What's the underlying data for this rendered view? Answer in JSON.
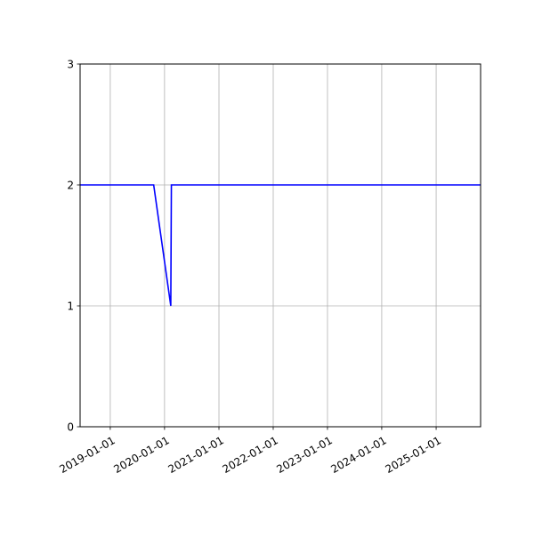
{
  "chart_data": {
    "type": "line",
    "title": "",
    "xlabel": "",
    "ylabel": "",
    "x_axis_type": "date",
    "xlim": [
      "2018-06-12",
      "2025-10-27"
    ],
    "ylim": [
      0,
      3
    ],
    "grid": true,
    "x_ticks": [
      "2019-01-01",
      "2020-01-01",
      "2021-01-01",
      "2022-01-01",
      "2023-01-01",
      "2024-01-01",
      "2025-01-01"
    ],
    "y_ticks": [
      0,
      1,
      2,
      3
    ],
    "series": [
      {
        "color": "#0000ff",
        "points": [
          {
            "x": "2018-06-12",
            "y": 2
          },
          {
            "x": "2019-10-20",
            "y": 2
          },
          {
            "x": "2020-02-12",
            "y": 1
          },
          {
            "x": "2020-02-16",
            "y": 2
          },
          {
            "x": "2025-10-27",
            "y": 2
          }
        ]
      }
    ]
  }
}
